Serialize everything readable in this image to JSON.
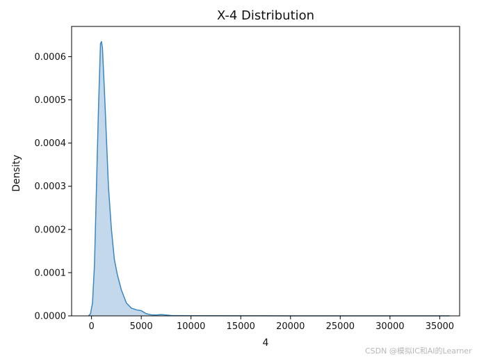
{
  "chart_data": {
    "type": "area",
    "title": "X-4 Distribution",
    "xlabel": "4",
    "ylabel": "Density",
    "xlim": [
      -2000,
      37000
    ],
    "ylim": [
      0,
      0.00067
    ],
    "x_ticks": [
      0,
      5000,
      10000,
      15000,
      20000,
      25000,
      30000,
      35000
    ],
    "y_ticks": [
      0.0,
      0.0001,
      0.0002,
      0.0003,
      0.0004,
      0.0005,
      0.0006
    ],
    "x_tick_labels": [
      "0",
      "5000",
      "10000",
      "15000",
      "20000",
      "25000",
      "30000",
      "35000"
    ],
    "y_tick_labels": [
      "0.0000",
      "0.0001",
      "0.0002",
      "0.0003",
      "0.0004",
      "0.0005",
      "0.0006"
    ],
    "grid": false,
    "colors": {
      "line": "#3a86c0",
      "fill": "#c3d8ea"
    },
    "series": [
      {
        "x": [
          -300,
          -100,
          100,
          300,
          500,
          700,
          900,
          1000,
          1100,
          1300,
          1500,
          1700,
          2000,
          2300,
          2600,
          3000,
          3500,
          4000,
          4500,
          5000,
          5500,
          6000,
          6500,
          7000,
          7500,
          8000,
          10000,
          15000,
          20000,
          25000,
          30000,
          35000,
          36000
        ],
        "y": [
          0.0,
          5e-06,
          3e-05,
          0.00012,
          0.0003,
          0.00048,
          0.00063,
          0.000635,
          0.00062,
          0.00052,
          0.00041,
          0.0003,
          0.0002,
          0.00013,
          9.5e-05,
          6e-05,
          3e-05,
          1.8e-05,
          1.4e-05,
          1.2e-05,
          5e-06,
          2.5e-06,
          2e-06,
          3e-06,
          2e-06,
          8e-07,
          4e-07,
          2e-07,
          1e-07,
          1e-07,
          1e-07,
          1e-07,
          0.0
        ]
      }
    ]
  },
  "watermark": "CSDN @模拟IC和AI的Learner"
}
